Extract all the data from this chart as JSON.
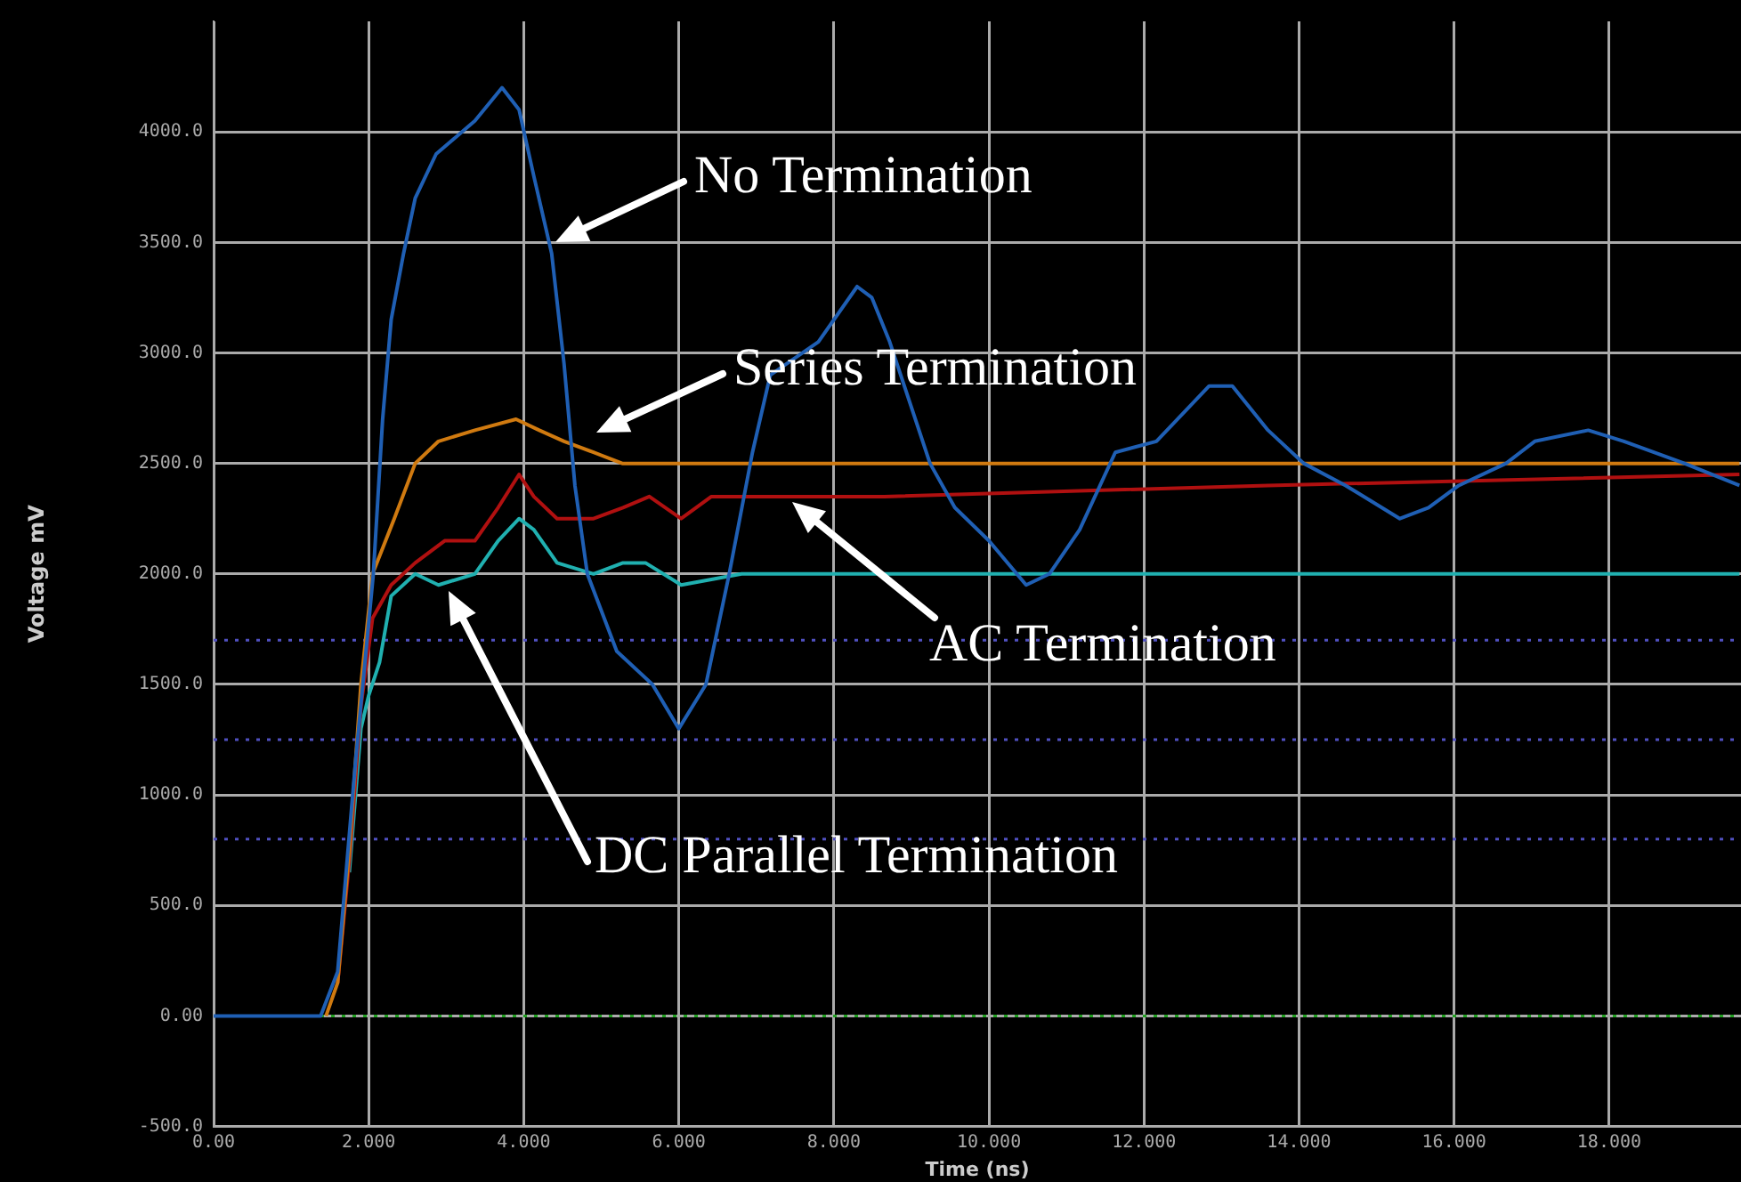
{
  "chart_data": {
    "type": "line",
    "xlabel": "Time (ns)",
    "ylabel": "Voltage mV",
    "xlim": [
      0,
      19.7
    ],
    "ylim": [
      -500,
      4500
    ],
    "xticks": [
      {
        "value": 0,
        "label": "0.00"
      },
      {
        "value": 2,
        "label": "2.000"
      },
      {
        "value": 4,
        "label": "4.000"
      },
      {
        "value": 6,
        "label": "6.000"
      },
      {
        "value": 8,
        "label": "8.000"
      },
      {
        "value": 10,
        "label": "10.000"
      },
      {
        "value": 12,
        "label": "12.000"
      },
      {
        "value": 14,
        "label": "14.000"
      },
      {
        "value": 16,
        "label": "16.000"
      },
      {
        "value": 18,
        "label": "18.000"
      }
    ],
    "yticks": [
      {
        "value": -500,
        "label": "-500.0"
      },
      {
        "value": 0,
        "label": "0.00"
      },
      {
        "value": 500,
        "label": "500.0"
      },
      {
        "value": 1000,
        "label": "1000.0"
      },
      {
        "value": 1500,
        "label": "1500.0"
      },
      {
        "value": 2000,
        "label": "2000.0"
      },
      {
        "value": 2500,
        "label": "2500.0"
      },
      {
        "value": 3000,
        "label": "3000.0"
      },
      {
        "value": 3500,
        "label": "3500.0"
      },
      {
        "value": 4000,
        "label": "4000.0"
      }
    ],
    "grid": true,
    "legend": false,
    "marker": "none",
    "line_style": "solid",
    "series": [
      {
        "color": "#1f5fb4",
        "x": [
          0,
          1.38,
          1.6,
          1.83,
          2.06,
          2.18,
          2.29,
          2.45,
          2.6,
          2.87,
          3.37,
          3.72,
          3.94,
          4.13,
          4.36,
          4.52,
          4.66,
          4.82,
          5.2,
          5.66,
          6.0,
          6.35,
          6.65,
          6.95,
          7.18,
          7.8,
          8.3,
          8.49,
          8.72,
          9.24,
          9.56,
          10.0,
          10.48,
          10.78,
          11.17,
          11.63,
          12.16,
          12.84,
          13.14,
          13.6,
          14.06,
          14.6,
          15.3,
          15.67,
          16.06,
          16.67,
          17.04,
          17.73,
          18.19,
          18.97,
          19.68
        ],
        "values": [
          0,
          0,
          200,
          1150,
          2000,
          2700,
          3150,
          3450,
          3700,
          3900,
          4050,
          4200,
          4100,
          3800,
          3450,
          2950,
          2400,
          2000,
          1650,
          1500,
          1300,
          1500,
          2000,
          2550,
          2900,
          3050,
          3300,
          3250,
          3050,
          2500,
          2300,
          2150,
          1950,
          2000,
          2200,
          2550,
          2600,
          2850,
          2850,
          2650,
          2500,
          2400,
          2250,
          2300,
          2400,
          2500,
          2600,
          2650,
          2600,
          2500,
          2400
        ]
      },
      {
        "color": "#d07a10",
        "x": [
          1.45,
          1.6,
          1.75,
          1.9,
          2.05,
          2.33,
          2.6,
          2.9,
          3.37,
          3.9,
          4.2,
          4.52,
          4.9,
          5.27,
          6.0,
          19.68
        ],
        "values": [
          0,
          150,
          750,
          1500,
          2000,
          2250,
          2500,
          2600,
          2650,
          2700,
          2650,
          2600,
          2550,
          2500,
          2500,
          2500
        ]
      },
      {
        "color": "#b01010",
        "x": [
          1.6,
          1.75,
          1.9,
          2.05,
          2.29,
          2.6,
          2.98,
          3.37,
          3.67,
          3.94,
          4.13,
          4.43,
          4.9,
          5.28,
          5.62,
          6.03,
          6.42,
          7.57,
          8.65,
          13.6,
          19.68
        ],
        "values": [
          150,
          700,
          1400,
          1800,
          1950,
          2050,
          2150,
          2150,
          2300,
          2450,
          2350,
          2250,
          2250,
          2300,
          2350,
          2250,
          2350,
          2350,
          2350,
          2400,
          2450
        ]
      },
      {
        "color": "#20b0b0",
        "x": [
          1.75,
          1.9,
          2.0,
          2.14,
          2.29,
          2.6,
          2.9,
          3.37,
          3.67,
          3.94,
          4.13,
          4.43,
          4.9,
          5.28,
          5.57,
          6.03,
          6.81,
          7.9,
          19.68
        ],
        "values": [
          650,
          1300,
          1450,
          1600,
          1900,
          2000,
          1950,
          2000,
          2150,
          2250,
          2200,
          2050,
          2000,
          2050,
          2050,
          1950,
          2000,
          2000,
          2000
        ]
      }
    ],
    "ref_lines": [
      {
        "axis": "y",
        "value": 1700,
        "color": "#5050c0",
        "line_style": "dotted"
      },
      {
        "axis": "y",
        "value": 1250,
        "color": "#5050c0",
        "line_style": "dotted"
      },
      {
        "axis": "y",
        "value": 800,
        "color": "#5050c0",
        "line_style": "dotted"
      },
      {
        "axis": "y",
        "value": 0,
        "color": "#20a020",
        "line_style": "dotted"
      }
    ],
    "annotations": [
      "No Termination",
      "Series Termination",
      "AC Termination",
      "DC Parallel Termination"
    ]
  }
}
